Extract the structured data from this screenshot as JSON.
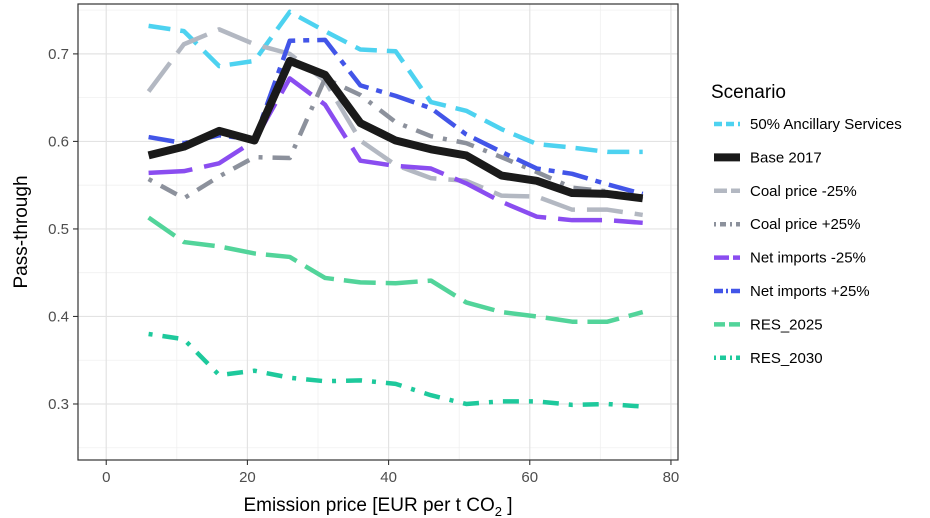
{
  "chart_data": {
    "type": "line",
    "xlabel": "Emission price [EUR per t CO",
    "xlabel_sub": "2",
    "xlabel_end": " ]",
    "ylabel": "Pass-through",
    "xlim": [
      -4,
      81
    ],
    "ylim": [
      0.236,
      0.757
    ],
    "xticks": [
      0,
      20,
      40,
      60,
      80
    ],
    "yticks": [
      0.3,
      0.4,
      0.5,
      0.6,
      0.7
    ],
    "xtick_labels": [
      "0",
      "20",
      "40",
      "60",
      "80"
    ],
    "ytick_labels": [
      "0.3",
      "0.4",
      "0.5",
      "0.6",
      "0.7"
    ],
    "grid": true,
    "legend_title": "Scenario",
    "legend_position": "right",
    "x": [
      6,
      11,
      16,
      21,
      26,
      31,
      36,
      41,
      46,
      51,
      56,
      61,
      66,
      71,
      76
    ],
    "series": [
      {
        "name": "50% Ancillary Services",
        "color": "#4dd2f0",
        "dash": "22,10",
        "width": 4.5,
        "values": [
          0.732,
          0.726,
          0.686,
          0.692,
          0.748,
          0.726,
          0.705,
          0.703,
          0.645,
          0.635,
          0.614,
          0.597,
          0.593,
          0.588,
          0.588
        ]
      },
      {
        "name": "Base 2017",
        "color": "#1a1a1a",
        "dash": "",
        "width": 8,
        "values": [
          0.584,
          0.594,
          0.612,
          0.601,
          0.692,
          0.676,
          0.621,
          0.601,
          0.591,
          0.584,
          0.561,
          0.555,
          0.541,
          0.54,
          0.535
        ]
      },
      {
        "name": "Coal price -25%",
        "color": "#b3b8c2",
        "dash": "36,12",
        "width": 4.5,
        "values": [
          0.657,
          0.711,
          0.728,
          0.711,
          0.7,
          0.669,
          0.601,
          0.573,
          0.558,
          0.555,
          0.538,
          0.537,
          0.522,
          0.522,
          0.516
        ]
      },
      {
        "name": "Coal price +25%",
        "color": "#8c919c",
        "dash": "4,10,18,10",
        "width": 4.5,
        "values": [
          0.557,
          0.535,
          0.56,
          0.582,
          0.581,
          0.672,
          0.653,
          0.622,
          0.606,
          0.598,
          0.582,
          0.565,
          0.547,
          0.543,
          0.534
        ]
      },
      {
        "name": "Net imports -25%",
        "color": "#8a4df0",
        "dash": "44,12",
        "width": 4.5,
        "values": [
          0.564,
          0.566,
          0.575,
          0.601,
          0.672,
          0.642,
          0.578,
          0.572,
          0.569,
          0.552,
          0.531,
          0.514,
          0.51,
          0.51,
          0.507
        ]
      },
      {
        "name": "Net imports +25%",
        "color": "#4255e8",
        "dash": "26,8,6,8",
        "width": 4.5,
        "values": [
          0.605,
          0.598,
          0.607,
          0.602,
          0.715,
          0.716,
          0.664,
          0.652,
          0.638,
          0.608,
          0.588,
          0.569,
          0.563,
          0.551,
          0.54
        ]
      },
      {
        "name": "RES_2025",
        "color": "#52d49a",
        "dash": "32,10",
        "width": 4.5,
        "values": [
          0.513,
          0.485,
          0.48,
          0.472,
          0.468,
          0.444,
          0.439,
          0.438,
          0.441,
          0.416,
          0.405,
          0.4,
          0.394,
          0.394,
          0.405
        ]
      },
      {
        "name": "RES_2030",
        "color": "#1ec99c",
        "dash": "4,10,16,10",
        "width": 4.5,
        "values": [
          0.38,
          0.374,
          0.333,
          0.338,
          0.33,
          0.326,
          0.327,
          0.323,
          0.31,
          0.3,
          0.303,
          0.303,
          0.299,
          0.3,
          0.297
        ]
      }
    ]
  }
}
